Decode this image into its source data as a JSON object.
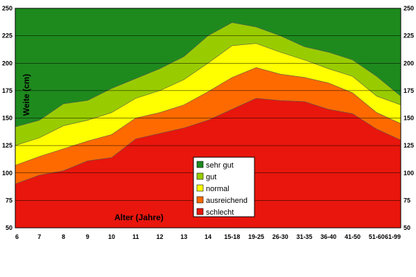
{
  "chart_data": {
    "type": "area",
    "stacking": "cumulative-bands",
    "categories": [
      "6",
      "7",
      "8",
      "9",
      "10",
      "11",
      "12",
      "13",
      "14",
      "15-18",
      "19-25",
      "26-30",
      "31-35",
      "36-40",
      "41-50",
      "51-60",
      "61-99"
    ],
    "series": [
      {
        "name": "schlecht",
        "color": "#e8160c",
        "values": [
          90,
          98,
          102,
          111,
          114,
          131,
          136,
          141,
          148,
          158,
          168,
          166,
          165,
          158,
          154,
          140,
          130
        ]
      },
      {
        "name": "ausreichend",
        "color": "#ff6a00",
        "values": [
          107,
          115,
          122,
          129,
          135,
          150,
          155,
          162,
          174,
          187,
          196,
          190,
          187,
          182,
          173,
          155,
          145
        ]
      },
      {
        "name": "normal",
        "color": "#ffff00",
        "values": [
          125,
          132,
          143,
          148,
          155,
          168,
          175,
          185,
          200,
          216,
          218,
          210,
          203,
          195,
          188,
          170,
          162
        ]
      },
      {
        "name": "gut",
        "color": "#99cc00",
        "values": [
          142,
          148,
          163,
          166,
          177,
          186,
          195,
          206,
          225,
          237,
          233,
          225,
          215,
          210,
          203,
          188,
          170
        ]
      },
      {
        "name": "sehr gut",
        "color": "#1e8a1e",
        "values": [
          250,
          250,
          250,
          250,
          250,
          250,
          250,
          250,
          250,
          250,
          250,
          250,
          250,
          250,
          250,
          250,
          250
        ]
      }
    ],
    "ylabel": "Weite (cm)",
    "xlabel": "Alter (Jahre)",
    "ylim": [
      50,
      250
    ],
    "yticks": [
      "50",
      "75",
      "100",
      "125",
      "150",
      "175",
      "200",
      "225",
      "250"
    ],
    "grid": true,
    "legend": [
      "sehr gut",
      "gut",
      "normal",
      "ausreichend",
      "schlecht"
    ],
    "legend_position": "center"
  }
}
